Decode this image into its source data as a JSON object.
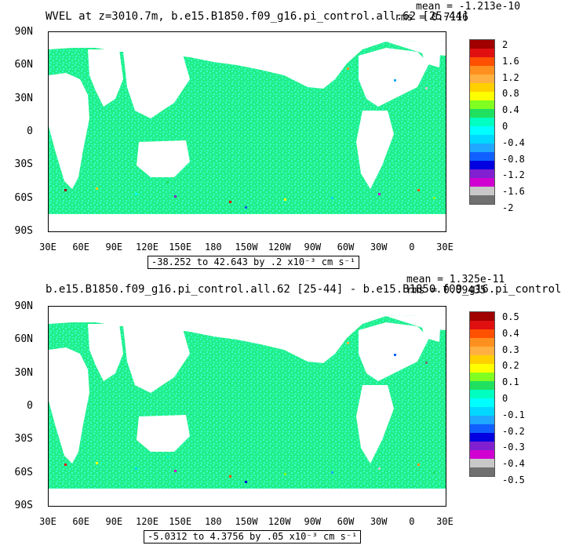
{
  "panels": [
    {
      "title": "WVEL at z=3010.7m, b.e15.B1850.f09_g16.pi_control.all.62 [25-44]",
      "mean": "mean = -1.213e-10",
      "rms": "rms = 0.7116",
      "range_text": "-38.252 to 42.643 by .2 x10⁻³ cm s⁻¹",
      "colorbar_labels": [
        "2",
        "1.6",
        "1.2",
        "0.8",
        "0.4",
        "0",
        "-0.4",
        "-0.8",
        "-1.2",
        "-1.6",
        "-2"
      ]
    },
    {
      "title": "b.e15.B1850.f09_g16.pi_control.all.62 [25-44] - b.e15.B1850.f09_g16.pi_control",
      "mean": "mean = 1.325e-11",
      "rms": "rms = 0.09435",
      "range_text": "-5.0312 to 4.3756 by .05 x10⁻³ cm s⁻¹",
      "colorbar_labels": [
        "0.5",
        "0.4",
        "0.3",
        "0.2",
        "0.1",
        "0",
        "-0.1",
        "-0.2",
        "-0.3",
        "-0.4",
        "-0.5"
      ]
    }
  ],
  "y_ticks": [
    "90N",
    "60N",
    "30N",
    "0",
    "30S",
    "60S",
    "90S"
  ],
  "x_ticks": [
    "30E",
    "60E",
    "90E",
    "120E",
    "150E",
    "180",
    "150W",
    "120W",
    "90W",
    "60W",
    "30W",
    "0",
    "30E"
  ],
  "colors": {
    "colorbar": [
      "#a00000",
      "#e01010",
      "#ff5000",
      "#ff9020",
      "#ffb040",
      "#ffd000",
      "#ffff00",
      "#80ff20",
      "#20e060",
      "#00ffc0",
      "#00ffff",
      "#00d8ff",
      "#20a8ff",
      "#1060ff",
      "#0000e0",
      "#8020d0",
      "#d000d0",
      "#c8c8c8",
      "#707070"
    ],
    "ocean_main": "#22ee88",
    "ocean_alt": "#33ffcc"
  },
  "chart_data": {
    "type": "heatmap",
    "charts": [
      {
        "title": "WVEL at z=3010.7m, b.e15.B1850.f09_g16.pi_control.all.62 [25-44]",
        "units": "x10⁻³ cm s⁻¹",
        "x_range": [
          "30E",
          "30E"
        ],
        "y_range": [
          "90S",
          "90N"
        ],
        "colorbar_range": [
          -2,
          2
        ],
        "data_min": -38.252,
        "data_max": 42.643,
        "mean": -1.213e-10,
        "rms": 0.7116
      },
      {
        "title": "b.e15.B1850.f09_g16.pi_control.all.62 [25-44] - b.e15.B1850.f09_g16.pi_control",
        "units": "x10⁻³ cm s⁻¹",
        "x_range": [
          "30E",
          "30E"
        ],
        "y_range": [
          "90S",
          "90N"
        ],
        "colorbar_range": [
          -0.5,
          0.5
        ],
        "data_min": -5.0312,
        "data_max": 4.3756,
        "mean": 1.325e-11,
        "rms": 0.09435
      }
    ]
  }
}
